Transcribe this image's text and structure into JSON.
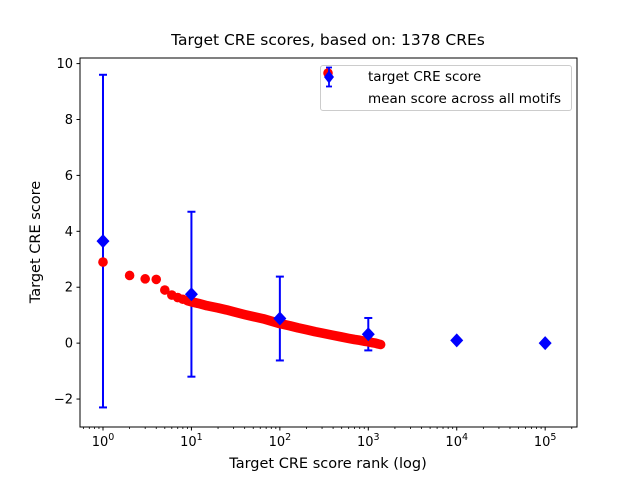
{
  "chart_data": {
    "type": "scatter",
    "title": "Target CRE scores, based on: 1378 CREs",
    "xlabel": "Target CRE score rank (log)",
    "ylabel": "Target CRE score",
    "x_scale": "log",
    "n_cres": 1378,
    "xlim_log10": [
      -0.26,
      5.36
    ],
    "ylim": [
      -3.0,
      10.2
    ],
    "x_major_tick_exponents": [
      0,
      1,
      2,
      3,
      4,
      5
    ],
    "y_ticks": [
      -2,
      0,
      2,
      4,
      6,
      8,
      10
    ],
    "grid": false,
    "series": [
      {
        "name": "target CRE score",
        "type": "scatter",
        "marker": "circle",
        "color": "#ff0000",
        "points": [
          [
            1,
            2.9
          ],
          [
            2,
            2.42
          ],
          [
            3,
            2.3
          ],
          [
            4,
            2.28
          ],
          [
            5,
            1.9
          ],
          [
            6,
            1.72
          ],
          [
            7,
            1.63
          ],
          [
            8,
            1.57
          ],
          [
            9,
            1.52
          ],
          [
            10,
            1.48
          ],
          [
            12,
            1.42
          ],
          [
            15,
            1.34
          ],
          [
            20,
            1.26
          ],
          [
            25,
            1.19
          ],
          [
            30,
            1.12
          ],
          [
            40,
            1.02
          ],
          [
            50,
            0.95
          ],
          [
            65,
            0.87
          ],
          [
            80,
            0.79
          ],
          [
            100,
            0.7
          ],
          [
            130,
            0.62
          ],
          [
            160,
            0.55
          ],
          [
            200,
            0.48
          ],
          [
            250,
            0.41
          ],
          [
            300,
            0.36
          ],
          [
            400,
            0.28
          ],
          [
            500,
            0.22
          ],
          [
            600,
            0.17
          ],
          [
            700,
            0.13
          ],
          [
            800,
            0.1
          ],
          [
            900,
            0.07
          ],
          [
            1000,
            0.05
          ],
          [
            1100,
            0.02
          ],
          [
            1200,
            0.0
          ],
          [
            1300,
            -0.03
          ],
          [
            1378,
            -0.05
          ]
        ]
      },
      {
        "name": "mean score across all motifs",
        "type": "errorbar",
        "marker": "diamond",
        "color": "#0000ff",
        "x": [
          1,
          10,
          100,
          1000,
          10000,
          100000
        ],
        "y": [
          3.65,
          1.75,
          0.88,
          0.32,
          0.1,
          0.0
        ],
        "yerr": [
          5.95,
          2.95,
          1.5,
          0.58,
          0.05,
          0.03
        ]
      }
    ],
    "legend": {
      "location": "upper right",
      "items": [
        {
          "label": "target CRE score"
        },
        {
          "label": "mean score across all motifs"
        }
      ]
    }
  },
  "colors": {
    "red": "#ff0000",
    "blue": "#0000ff",
    "axis": "#000000",
    "legend_border": "#cccccc",
    "background": "#ffffff"
  }
}
